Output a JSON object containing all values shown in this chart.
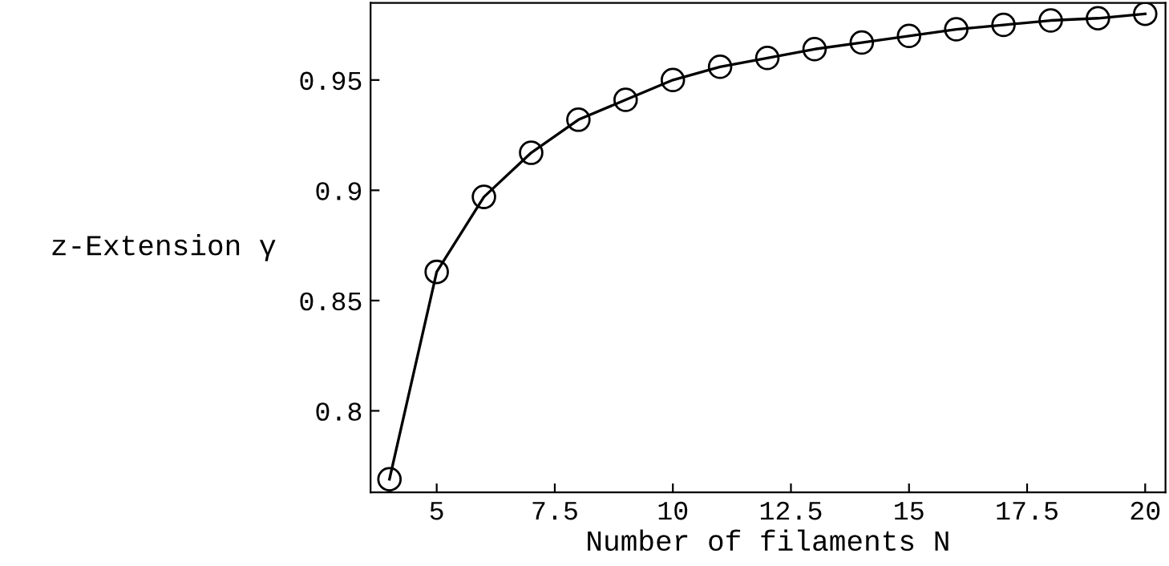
{
  "chart_data": {
    "type": "line",
    "xlabel": "Number of filaments N",
    "ylabel": "z-Extension γ",
    "x": [
      4,
      5,
      6,
      7,
      8,
      9,
      10,
      11,
      12,
      13,
      14,
      15,
      16,
      17,
      18,
      19,
      20
    ],
    "series": [
      {
        "color": "#000000",
        "values": [
          0.769,
          0.863,
          0.897,
          0.917,
          0.932,
          0.941,
          0.95,
          0.956,
          0.96,
          0.964,
          0.967,
          0.97,
          0.973,
          0.975,
          0.977,
          0.978,
          0.98
        ]
      }
    ],
    "xlim": [
      3.6,
      20.43
    ],
    "ylim": [
      0.763,
      0.985
    ],
    "xticks": [
      5,
      7.5,
      10,
      12.5,
      15,
      17.5,
      20
    ],
    "yticks": [
      0.8,
      0.85,
      0.9,
      0.95
    ],
    "marker": "circle",
    "line_style": "solid",
    "grid": false,
    "legend": false
  }
}
